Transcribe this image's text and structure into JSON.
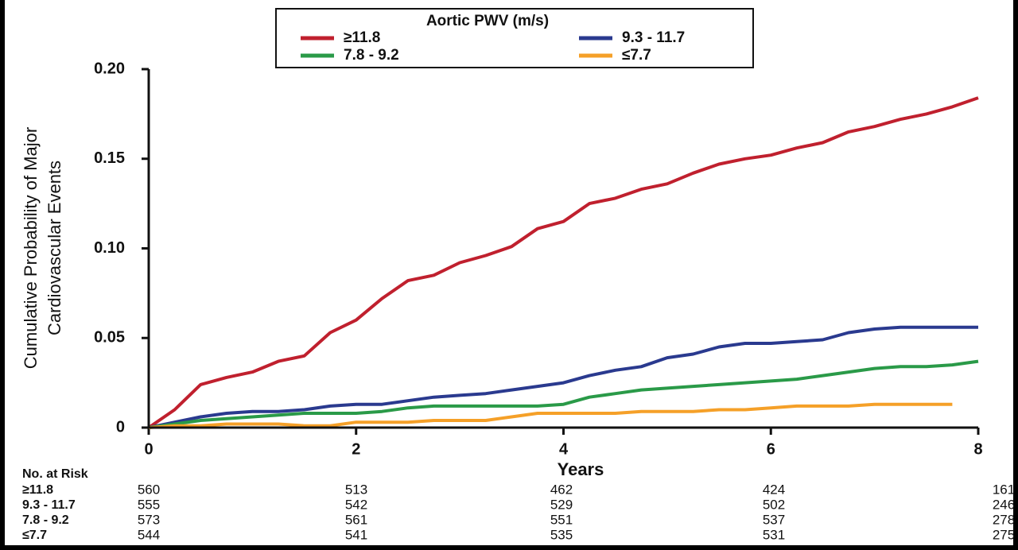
{
  "chart_data": {
    "type": "line",
    "legend_title": "Aortic PWV (m/s)",
    "xlabel": "Years",
    "ylabel": [
      "Cumulative Probability of Major",
      "Cardiovascular Events"
    ],
    "x": [
      0,
      0.25,
      0.5,
      0.75,
      1,
      1.25,
      1.5,
      1.75,
      2,
      2.25,
      2.5,
      2.75,
      3,
      3.25,
      3.5,
      3.75,
      4,
      4.25,
      4.5,
      4.75,
      5,
      5.25,
      5.5,
      5.75,
      6,
      6.25,
      6.5,
      6.75,
      7,
      7.25,
      7.5,
      7.75,
      8
    ],
    "series": [
      {
        "name": "≥11.8",
        "color": "#c0202e",
        "values": [
          0,
          0.01,
          0.024,
          0.028,
          0.031,
          0.037,
          0.04,
          0.053,
          0.06,
          0.072,
          0.082,
          0.085,
          0.092,
          0.096,
          0.101,
          0.111,
          0.115,
          0.125,
          0.128,
          0.133,
          0.136,
          0.142,
          0.147,
          0.15,
          0.152,
          0.156,
          0.159,
          0.165,
          0.168,
          0.172,
          0.175,
          0.179,
          0.184
        ]
      },
      {
        "name": "9.3 - 11.7",
        "color": "#2a3a8f",
        "values": [
          0,
          0.003,
          0.006,
          0.008,
          0.009,
          0.009,
          0.01,
          0.012,
          0.013,
          0.013,
          0.015,
          0.017,
          0.018,
          0.019,
          0.021,
          0.023,
          0.025,
          0.029,
          0.032,
          0.034,
          0.039,
          0.041,
          0.045,
          0.047,
          0.047,
          0.048,
          0.049,
          0.053,
          0.055,
          0.056,
          0.056,
          0.056,
          0.056
        ]
      },
      {
        "name": "7.8 - 9.2",
        "color": "#2a9a48",
        "values": [
          0,
          0.002,
          0.004,
          0.005,
          0.006,
          0.007,
          0.008,
          0.008,
          0.008,
          0.009,
          0.011,
          0.012,
          0.012,
          0.012,
          0.012,
          0.012,
          0.013,
          0.017,
          0.019,
          0.021,
          0.022,
          0.023,
          0.024,
          0.025,
          0.026,
          0.027,
          0.029,
          0.031,
          0.033,
          0.034,
          0.034,
          0.035,
          0.037
        ]
      },
      {
        "name": "≤7.7",
        "color": "#f5a028",
        "values": [
          0,
          0.001,
          0.001,
          0.002,
          0.002,
          0.002,
          0.001,
          0.001,
          0.003,
          0.003,
          0.003,
          0.004,
          0.004,
          0.004,
          0.006,
          0.008,
          0.008,
          0.008,
          0.008,
          0.009,
          0.009,
          0.009,
          0.01,
          0.01,
          0.011,
          0.012,
          0.012,
          0.012,
          0.013,
          0.013,
          0.013,
          0.013,
          null
        ]
      }
    ],
    "xlim": [
      0,
      8
    ],
    "xticks": [
      0,
      2,
      4,
      6,
      8
    ],
    "ylim": [
      0,
      0.2
    ],
    "yticks": [
      0,
      0.05,
      {
        "value": 0.1,
        "label": "0.10"
      },
      0.15,
      {
        "value": 0.2,
        "label": "0.20"
      }
    ],
    "risk_table": {
      "title": "No. at Risk",
      "rows": [
        {
          "label": "≥11.8",
          "values": [
            560,
            513,
            462,
            424,
            161
          ]
        },
        {
          "label": "9.3 - 11.7",
          "values": [
            555,
            542,
            529,
            502,
            246
          ]
        },
        {
          "label": "7.8 - 9.2",
          "values": [
            573,
            561,
            551,
            537,
            278
          ]
        },
        {
          "label": "≤7.7",
          "values": [
            544,
            541,
            535,
            531,
            275
          ]
        }
      ]
    }
  }
}
